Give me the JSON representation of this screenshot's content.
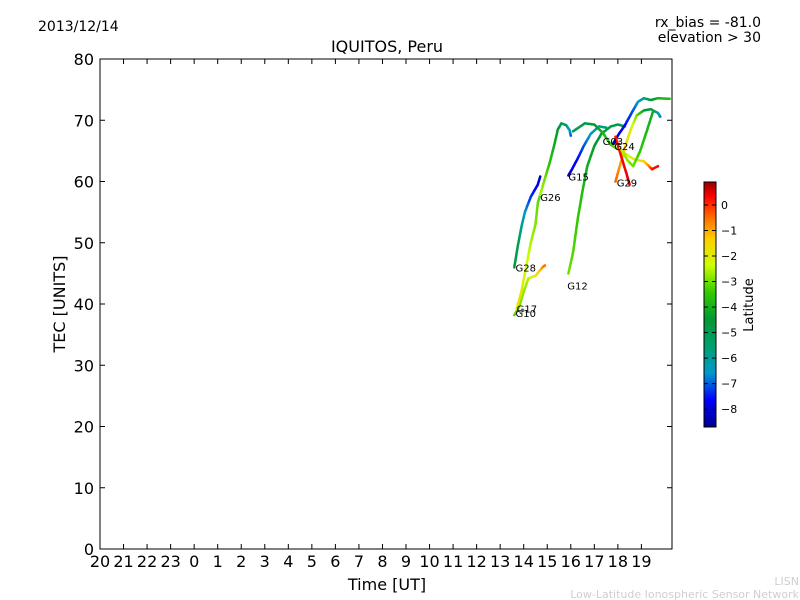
{
  "date_label": "2013/12/14",
  "rx_bias_label": "rx_bias = -81.0",
  "elevation_label": "elevation > 30",
  "credit": {
    "line1": "LISN",
    "line2": "Low-Latitude Ionospheric Sensor Network"
  },
  "chart_data": {
    "type": "scatter",
    "title": "IQUITOS, Peru",
    "xlabel": "Time [UT]",
    "ylabel": "TEC [UNITS]",
    "x_tick_labels": [
      "20",
      "21",
      "22",
      "23",
      "0",
      "1",
      "2",
      "3",
      "4",
      "5",
      "6",
      "7",
      "8",
      "9",
      "10",
      "11",
      "12",
      "13",
      "14",
      "15",
      "16",
      "17",
      "18",
      "19"
    ],
    "xlim_hours_since_start": [
      0,
      24.3
    ],
    "ylim": [
      0,
      80
    ],
    "y_ticks": [
      0,
      10,
      20,
      30,
      40,
      50,
      60,
      70,
      80
    ],
    "grid": false,
    "colorbar": {
      "label": "Latitude",
      "range": [
        -8.7,
        0.9
      ],
      "ticks": [
        0,
        -1,
        -2,
        -3,
        -4,
        -5,
        -6,
        -7,
        -8
      ],
      "tick_labels": [
        "0",
        "−1",
        "−2",
        "−3",
        "−4",
        "−5",
        "−6",
        "−7",
        "−8"
      ]
    },
    "series": [
      {
        "name": "G10",
        "label_at": [
          17.65,
          38.5
        ],
        "points": [
          [
            17.6,
            38.2,
            -3.2
          ],
          [
            17.8,
            39.5,
            -3.0
          ],
          [
            18.0,
            42.0,
            -2.8
          ],
          [
            18.2,
            44.2,
            -2.6
          ],
          [
            18.5,
            44.6,
            -2.0
          ],
          [
            18.8,
            46.0,
            -0.8
          ],
          [
            18.9,
            46.3,
            -0.5
          ]
        ]
      },
      {
        "name": "G17",
        "label_at": [
          17.7,
          39.3
        ],
        "points": [
          [
            17.7,
            39.2,
            -1.8
          ],
          [
            17.9,
            42.0,
            -1.9
          ],
          [
            18.1,
            46.0,
            -2.2
          ],
          [
            18.3,
            50.0,
            -2.6
          ],
          [
            18.5,
            53.0,
            -2.9
          ],
          [
            18.6,
            56.5,
            -3.1
          ],
          [
            18.75,
            58.5,
            -3.3
          ]
        ]
      },
      {
        "name": "G28",
        "label_at": [
          17.65,
          46.0
        ],
        "points": [
          [
            17.6,
            46.0,
            -4.6
          ],
          [
            17.75,
            49.5,
            -5.0
          ],
          [
            17.9,
            52.5,
            -5.8
          ],
          [
            18.05,
            55.0,
            -6.6
          ],
          [
            18.3,
            57.5,
            -7.3
          ],
          [
            18.6,
            59.5,
            -7.8
          ],
          [
            18.7,
            60.8,
            -8.2
          ]
        ]
      },
      {
        "name": "G26",
        "label_at": [
          18.7,
          57.5
        ],
        "points": [
          [
            18.7,
            57.8,
            -2.5
          ],
          [
            18.9,
            60.5,
            -3.0
          ],
          [
            19.1,
            63.0,
            -3.6
          ],
          [
            19.3,
            66.0,
            -4.1
          ],
          [
            19.45,
            68.5,
            -4.4
          ],
          [
            19.6,
            69.5,
            -4.8
          ],
          [
            19.8,
            69.2,
            -5.5
          ],
          [
            19.95,
            68.4,
            -6.5
          ],
          [
            20.0,
            67.5,
            -7.0
          ]
        ]
      },
      {
        "name": "G15",
        "label_at": [
          19.9,
          60.8
        ],
        "points": [
          [
            19.9,
            61.0,
            -8.5
          ],
          [
            20.05,
            62.0,
            -8.0
          ],
          [
            20.3,
            63.8,
            -7.6
          ],
          [
            20.55,
            65.8,
            -7.1
          ],
          [
            20.85,
            67.8,
            -6.5
          ],
          [
            21.2,
            69.0,
            -6.0
          ],
          [
            21.5,
            68.8,
            -5.5
          ]
        ]
      },
      {
        "name": "G12",
        "label_at": [
          19.85,
          43.0
        ],
        "points": [
          [
            19.9,
            45.0,
            -3.0
          ],
          [
            20.1,
            48.5,
            -3.2
          ],
          [
            20.3,
            54.0,
            -3.5
          ],
          [
            20.5,
            58.5,
            -3.8
          ],
          [
            20.7,
            62.5,
            -4.1
          ],
          [
            21.0,
            65.8,
            -4.4
          ],
          [
            21.3,
            67.8,
            -4.7
          ],
          [
            21.7,
            69.0,
            -5.0
          ],
          [
            22.0,
            69.3,
            -4.8
          ],
          [
            22.3,
            69.0,
            -4.5
          ]
        ]
      },
      {
        "name": "G03",
        "label_at": [
          21.35,
          66.6
        ],
        "points": [
          [
            20.1,
            68.2,
            -5.2
          ],
          [
            20.6,
            69.5,
            -4.8
          ],
          [
            21.0,
            69.3,
            -4.5
          ],
          [
            21.35,
            68.0,
            -4.0
          ],
          [
            21.7,
            66.0,
            -3.4
          ],
          [
            22.2,
            64.8,
            -2.8
          ],
          [
            22.7,
            63.6,
            -2.0
          ],
          [
            23.1,
            63.3,
            -1.5
          ],
          [
            23.3,
            62.6,
            -0.8
          ],
          [
            23.45,
            62.0,
            0.2
          ],
          [
            23.7,
            62.5,
            0.3
          ]
        ]
      },
      {
        "name": "G24",
        "label_at": [
          21.85,
          65.8
        ],
        "points": [
          [
            21.8,
            66.2,
            -8.4
          ],
          [
            22.0,
            67.5,
            -8.0
          ],
          [
            22.3,
            69.2,
            -7.6
          ],
          [
            22.6,
            71.3,
            -7.2
          ],
          [
            22.85,
            73.0,
            -6.6
          ],
          [
            23.1,
            73.6,
            -5.8
          ],
          [
            23.4,
            73.3,
            -4.8
          ],
          [
            23.7,
            73.6,
            -4.0
          ],
          [
            24.2,
            73.5,
            -3.8
          ]
        ]
      },
      {
        "name": "G29",
        "label_at": [
          21.95,
          59.8
        ],
        "points": [
          [
            21.9,
            60.0,
            -0.4
          ],
          [
            22.15,
            63.5,
            -1.0
          ],
          [
            22.35,
            66.2,
            -1.5
          ],
          [
            22.55,
            68.5,
            -2.0
          ],
          [
            22.8,
            70.8,
            -3.0
          ],
          [
            23.1,
            71.6,
            -4.2
          ],
          [
            23.4,
            71.8,
            -5.0
          ],
          [
            23.7,
            71.2,
            -6.0
          ],
          [
            23.8,
            70.6,
            -6.8
          ]
        ]
      },
      {
        "name": "",
        "label_at": null,
        "points": [
          [
            21.9,
            67.3,
            0.2
          ],
          [
            22.15,
            64.0,
            0.3
          ],
          [
            22.35,
            61.5,
            0.4
          ],
          [
            22.5,
            59.5,
            0.5
          ]
        ]
      },
      {
        "name": "",
        "label_at": null,
        "points": [
          [
            22.1,
            65.5,
            -2.5
          ],
          [
            22.4,
            63.5,
            -2.8
          ],
          [
            22.65,
            62.5,
            -3.0
          ],
          [
            22.95,
            65.0,
            -3.5
          ],
          [
            23.25,
            68.5,
            -3.9
          ],
          [
            23.5,
            71.5,
            -4.2
          ]
        ]
      }
    ]
  }
}
